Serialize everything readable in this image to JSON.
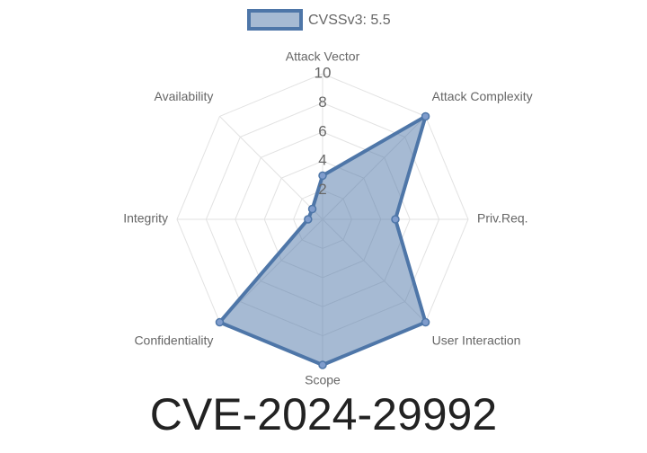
{
  "chart_data": {
    "type": "radar",
    "title": "CVE-2024-29992",
    "categories": [
      "Attack Vector",
      "Attack Complexity",
      "Priv.Req.",
      "User Interaction",
      "Scope",
      "Confidentiality",
      "Integrity",
      "Availability"
    ],
    "series": [
      {
        "name": "CVSSv3: 5.5",
        "color": "#4e76a8",
        "values": [
          3,
          10,
          5,
          10,
          10,
          10,
          1,
          1
        ]
      }
    ],
    "ylim": [
      0,
      10
    ],
    "yticks": [
      2,
      4,
      6,
      8,
      10
    ],
    "grid": true
  }
}
